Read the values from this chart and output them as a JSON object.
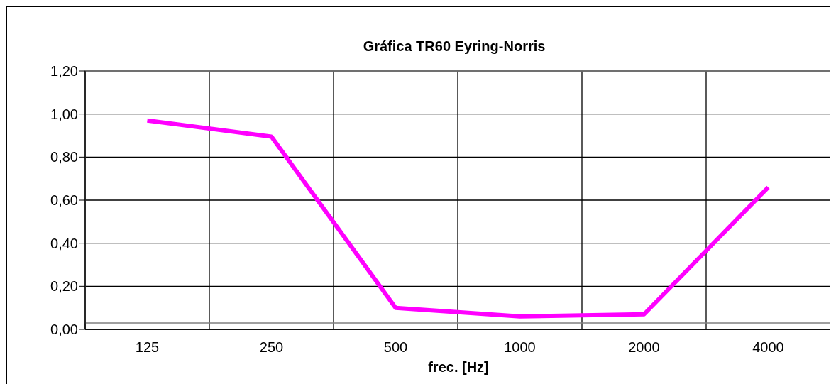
{
  "chart_data": {
    "type": "line",
    "title": "Gráfica TR60 Eyring-Norris",
    "xlabel": "frec. [Hz]",
    "categories": [
      "125",
      "250",
      "500",
      "1000",
      "2000",
      "4000"
    ],
    "series": [
      {
        "color": "#ff00ff",
        "values": [
          0.97,
          0.895,
          0.1,
          0.06,
          0.07,
          0.66
        ]
      }
    ],
    "ylim": [
      0,
      1.2
    ],
    "yticks": [
      {
        "value": 0,
        "label": "0,00"
      },
      {
        "value": 0.2,
        "label": "0,20"
      },
      {
        "value": 0.4,
        "label": "0,40"
      },
      {
        "value": 0.6,
        "label": "0,60"
      },
      {
        "value": 0.8,
        "label": "0,80"
      },
      {
        "value": 1,
        "label": "1,00"
      },
      {
        "value": 1.2,
        "label": "1,20"
      }
    ],
    "grid": true,
    "legend": false,
    "marker": "none",
    "line_style": "solid"
  }
}
